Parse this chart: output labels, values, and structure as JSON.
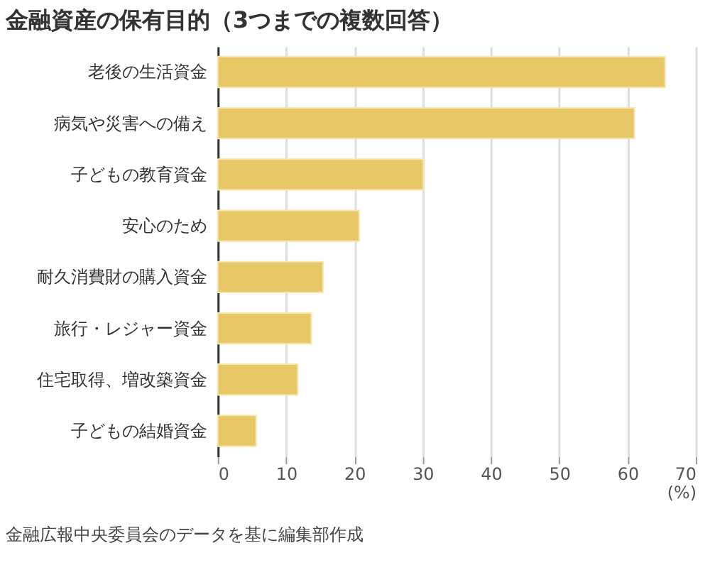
{
  "chart_data": {
    "type": "bar",
    "orientation": "horizontal",
    "title": "金融資産の保有目的（3つまでの複数回答）",
    "categories": [
      "老後の生活資金",
      "病気や災害への備え",
      "子どもの教育資金",
      "安心のため",
      "耐久消費財の購入資金",
      "旅行・レジャー資金",
      "住宅取得、増改築資金",
      "子どもの結婚資金"
    ],
    "values": [
      65.5,
      61.0,
      30.1,
      20.7,
      15.4,
      13.7,
      11.7,
      5.6
    ],
    "color": "#e8c766",
    "xlim": [
      0,
      70
    ],
    "xticks": [
      0,
      10,
      20,
      30,
      40,
      50,
      60,
      70
    ],
    "xlabel": "(%)",
    "grid": "x",
    "annotations": [
      "金融広報中央委員会のデータを基に編集部作成"
    ]
  }
}
